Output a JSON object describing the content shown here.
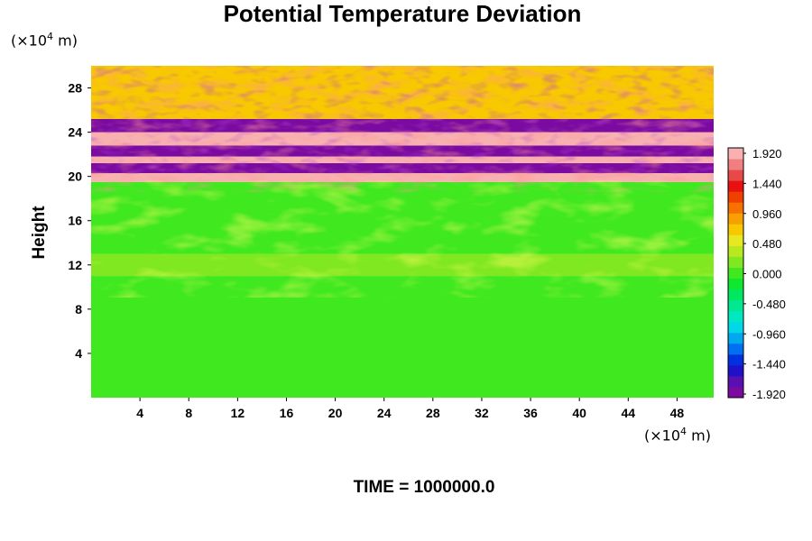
{
  "chart_data": {
    "type": "heatmap",
    "title": "Potential Temperature Deviation",
    "ylabel": "Height",
    "y_unit": {
      "prefix": "(×10",
      "exp": "4",
      "suffix": " m)"
    },
    "x_unit": {
      "prefix": "(×10",
      "exp": "4",
      "suffix": " m)"
    },
    "xlim": [
      0,
      51
    ],
    "ylim": [
      0,
      30
    ],
    "x_ticks": [
      4,
      8,
      12,
      16,
      20,
      24,
      28,
      32,
      36,
      40,
      44,
      48
    ],
    "y_ticks": [
      4,
      8,
      12,
      16,
      20,
      24,
      28
    ],
    "colorbar": {
      "min": -1.92,
      "max": 1.92,
      "tick_labels": [
        "1.920",
        "1.440",
        "0.960",
        "0.480",
        "0.000",
        "-0.480",
        "-0.960",
        "-1.440",
        "-1.920"
      ],
      "colors": [
        "#7a0aa0",
        "#5a10b0",
        "#2010c8",
        "#0030e0",
        "#0070f0",
        "#00a8f0",
        "#00d8e8",
        "#00e8c0",
        "#00e890",
        "#00e860",
        "#10e830",
        "#40e820",
        "#80e820",
        "#b8e820",
        "#e8e820",
        "#f8c800",
        "#f8a000",
        "#f87000",
        "#f04000",
        "#e81010",
        "#e84848",
        "#f08080",
        "#f8b0b0"
      ]
    },
    "field_description_bands": [
      {
        "y_range": [
          0,
          11
        ],
        "value": 0.0
      },
      {
        "y_range": [
          11,
          13
        ],
        "value": 0.2
      },
      {
        "y_range": [
          13,
          19.5
        ],
        "value": 0.05
      },
      {
        "y_range": [
          19.5,
          20.3
        ],
        "value": 1.92
      },
      {
        "y_range": [
          20.3,
          21.2
        ],
        "value": -1.92
      },
      {
        "y_range": [
          21.2,
          21.8
        ],
        "value": 1.92
      },
      {
        "y_range": [
          21.8,
          22.8
        ],
        "value": -1.92
      },
      {
        "y_range": [
          22.8,
          24.0
        ],
        "value": 1.92
      },
      {
        "y_range": [
          24.0,
          25.2
        ],
        "value": -1.92
      },
      {
        "y_range": [
          25.2,
          30
        ],
        "value": 0.6
      }
    ],
    "footer": "TIME = 1000000.0"
  }
}
